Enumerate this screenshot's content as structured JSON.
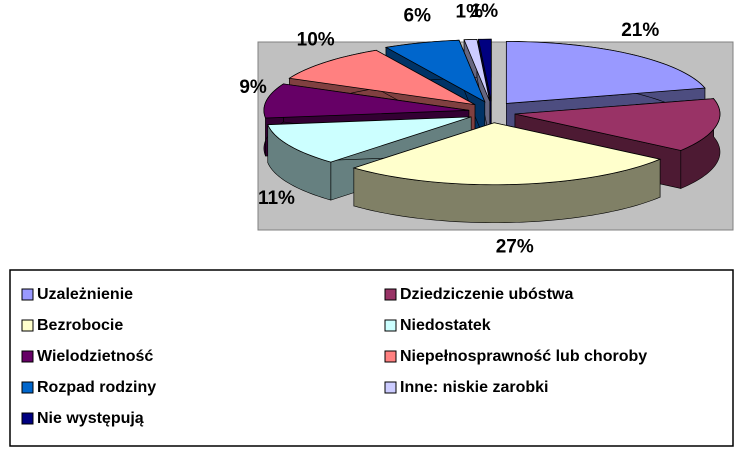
{
  "chart_data": {
    "type": "pie3d",
    "categories": [
      "Uzależnienie",
      "Dziedziczenie ubóstwa",
      "Bezrobocie",
      "Niedostatek",
      "Wielodzietność",
      "Niepełnosprawność lub choroby",
      "Rozpad rodziny",
      "Inne: niskie zarobki",
      "Nie występują"
    ],
    "values": [
      21,
      14,
      27,
      11,
      9,
      10,
      6,
      1,
      1
    ],
    "value_labels": [
      "21%",
      null,
      "27%",
      "11%",
      "9%",
      "10%",
      "6%",
      "1%",
      "1%"
    ],
    "colors": [
      "#9999ff",
      "#993366",
      "#ffffcc",
      "#ccffff",
      "#660066",
      "#ff8080",
      "#0066cc",
      "#ccccff",
      "#000080"
    ],
    "legend": "bottom"
  }
}
